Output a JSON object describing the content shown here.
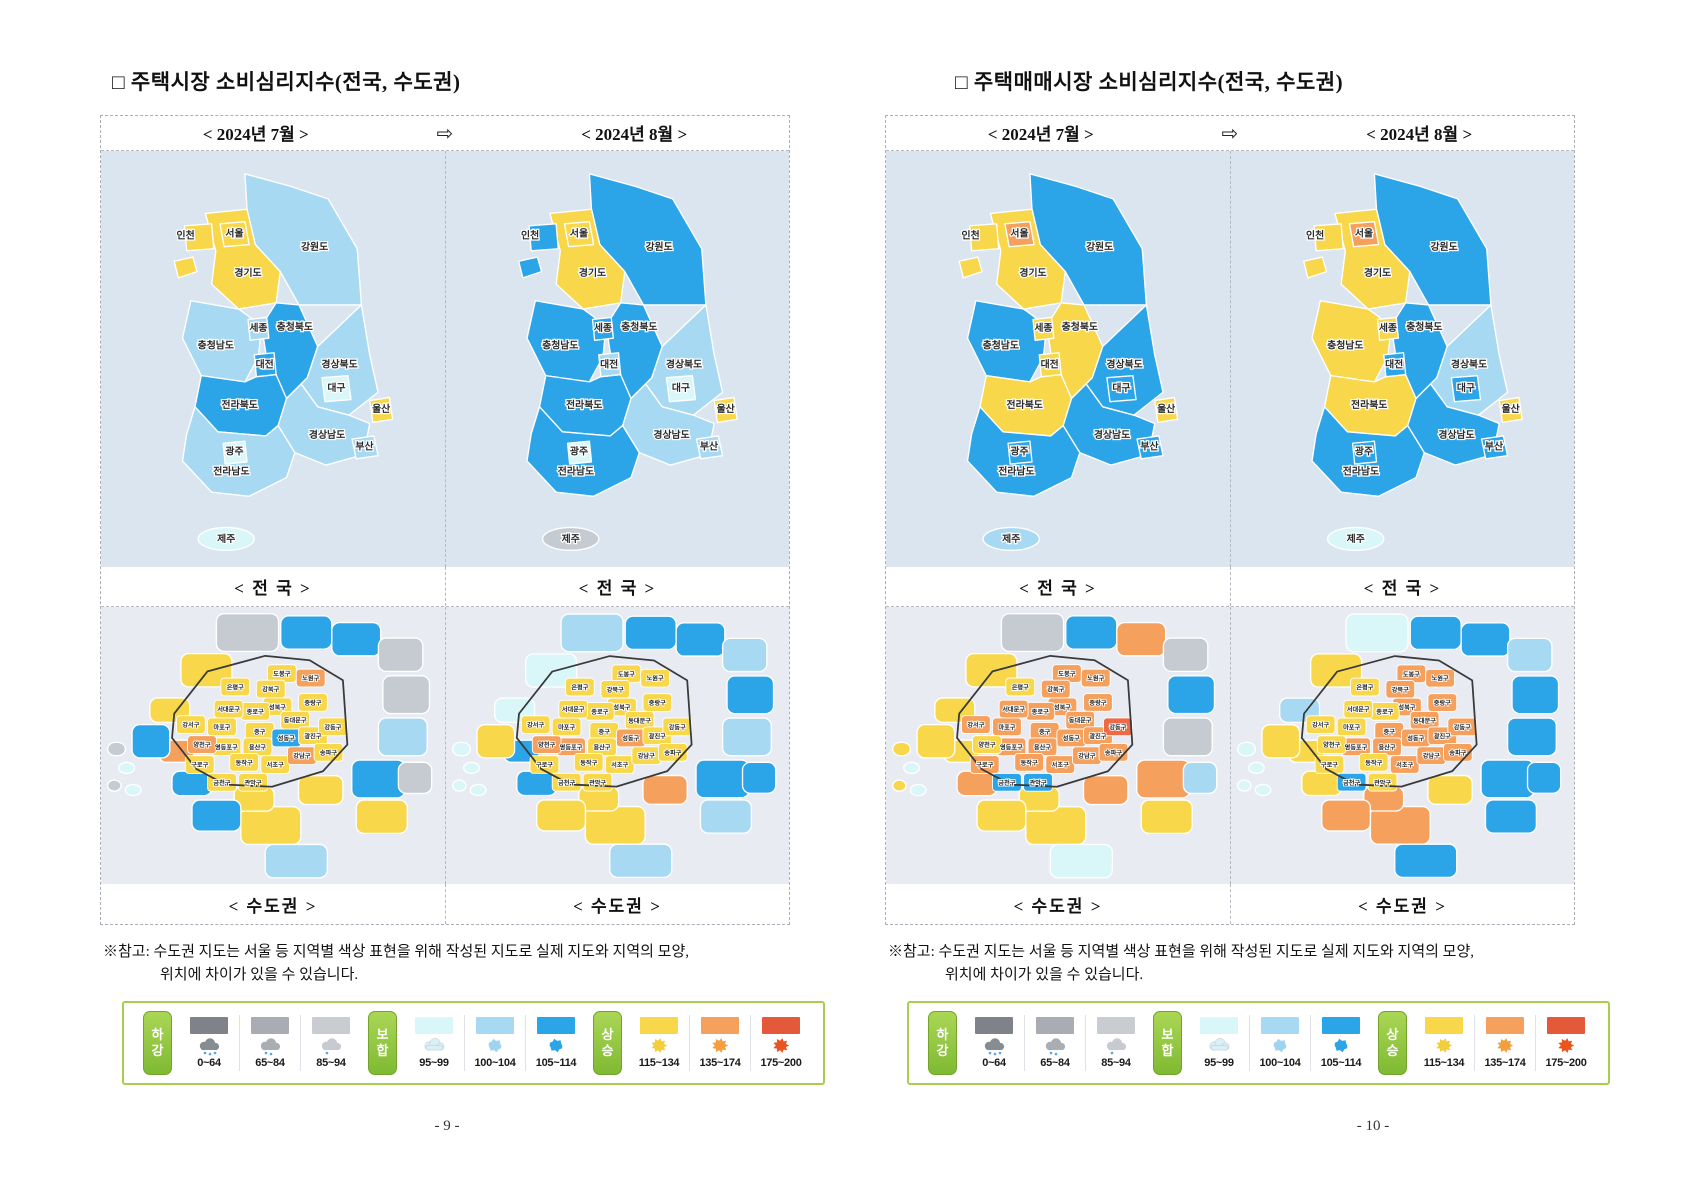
{
  "common": {
    "months": {
      "july": "< 2024년 7월 >",
      "august": "< 2024년 8월 >",
      "arrow": "⇨"
    },
    "section_labels": {
      "national": "< 전  국 >",
      "metro": "< 수도권 >"
    },
    "note": {
      "prefix": "※참고:",
      "line1": "수도권 지도는 서울 등 지역별 색상 표현을 위해 작성된 지도로 실제 지도와 지역의 모양,",
      "line2": "위치에 차이가 있을 수 있습니다."
    }
  },
  "pages": [
    {
      "title": "□ 주택시장 소비심리지수(전국, 수도권)",
      "page_number": "- 9 -",
      "maps": {
        "national_july": {
          "incheon": "y",
          "seoul": "y",
          "gyeonggi": "y",
          "gangwon": "lb",
          "chungbuk": "b",
          "sejong": "lb",
          "chungnam": "lb",
          "daejeon": "b",
          "gyeongbuk": "lb",
          "daegu": "c",
          "ulsan": "y",
          "gyeongnam": "lb",
          "busan": "lb",
          "jeonbuk": "b",
          "gwangju": "c",
          "jeonnam": "lb",
          "jeju": "c"
        },
        "national_august": {
          "incheon": "b",
          "seoul": "y",
          "gyeonggi": "y",
          "gangwon": "b",
          "chungbuk": "b",
          "sejong": "b",
          "chungnam": "b",
          "daejeon": "lb",
          "gyeongbuk": "lb",
          "daegu": "c",
          "ulsan": "y",
          "gyeongnam": "lb",
          "busan": "lb",
          "jeonbuk": "b",
          "gwangju": "c",
          "jeonnam": "b",
          "jeju": "g"
        },
        "metro_july": {
          "dobong": "y",
          "nowon": "o",
          "gangbuk": "y",
          "eunpyeong": "y",
          "seongbuk": "y",
          "jungnang": "y",
          "jongno": "y",
          "dongdaemun": "y",
          "seodaemun": "y",
          "mapo": "y",
          "jung": "y",
          "seongdong": "b",
          "gwangjin": "y",
          "gangdong": "y",
          "yongsan": "y",
          "yeongdeungpo": "y",
          "dongjak": "y",
          "seocho": "y",
          "gangnam": "o",
          "songpa": "y",
          "yangcheon": "o",
          "guro": "y",
          "geumcheon": "y",
          "gwanak": "y",
          "gangseo": "y",
          "g1": "g",
          "g2": "b",
          "g3": "b",
          "g4": "g",
          "g5": "g",
          "g6": "lb",
          "g7": "b",
          "g8": "y",
          "g9": "g",
          "g10": "y",
          "g11": "y",
          "g12": "y",
          "g13": "b",
          "g14": "b",
          "g15": "o",
          "g16": "b",
          "g17": "y",
          "g18": "y",
          "g19": "lb",
          "i1": "g",
          "i2": "c",
          "i3": "g",
          "i4": "c"
        },
        "metro_august": {
          "dobong": "y",
          "nowon": "y",
          "gangbuk": "y",
          "eunpyeong": "y",
          "seongbuk": "y",
          "jungnang": "y",
          "jongno": "y",
          "dongdaemun": "y",
          "seodaemun": "y",
          "mapo": "y",
          "jung": "y",
          "seongdong": "o",
          "gwangjin": "y",
          "gangdong": "y",
          "yongsan": "y",
          "yeongdeungpo": "o",
          "dongjak": "y",
          "seocho": "y",
          "gangnam": "y",
          "songpa": "y",
          "yangcheon": "o",
          "guro": "y",
          "geumcheon": "y",
          "gwanak": "y",
          "gangseo": "y",
          "g1": "lb",
          "g2": "b",
          "g3": "b",
          "g4": "lb",
          "g5": "b",
          "g6": "lb",
          "g7": "b",
          "g8": "lb",
          "g9": "b",
          "g10": "y",
          "g11": "o",
          "g12": "y",
          "g13": "y",
          "g14": "b",
          "g15": "b",
          "g16": "y",
          "g17": "c",
          "g18": "c",
          "g19": "lb",
          "i1": "c",
          "i2": "c",
          "i3": "c",
          "i4": "c"
        }
      }
    },
    {
      "title": "□ 주택매매시장 소비심리지수(전국, 수도권)",
      "page_number": "- 10 -",
      "maps": {
        "national_july": {
          "incheon": "y",
          "seoul": "o",
          "gyeonggi": "y",
          "gangwon": "b",
          "chungbuk": "y",
          "sejong": "y",
          "chungnam": "b",
          "daejeon": "y",
          "gyeongbuk": "b",
          "daegu": "b",
          "ulsan": "y",
          "gyeongnam": "b",
          "busan": "b",
          "jeonbuk": "y",
          "gwangju": "b",
          "jeonnam": "b",
          "jeju": "lb"
        },
        "national_august": {
          "incheon": "y",
          "seoul": "o",
          "gyeonggi": "y",
          "gangwon": "b",
          "chungbuk": "b",
          "sejong": "y",
          "chungnam": "y",
          "daejeon": "b",
          "gyeongbuk": "lb",
          "daegu": "b",
          "ulsan": "y",
          "gyeongnam": "b",
          "busan": "b",
          "jeonbuk": "y",
          "gwangju": "b",
          "jeonnam": "b",
          "jeju": "c"
        },
        "metro_july": {
          "dobong": "o",
          "nowon": "o",
          "gangbuk": "o",
          "eunpyeong": "y",
          "seongbuk": "o",
          "jungnang": "o",
          "jongno": "o",
          "dongdaemun": "o",
          "seodaemun": "o",
          "mapo": "o",
          "jung": "o",
          "seongdong": "o",
          "gwangjin": "o",
          "gangdong": "r",
          "yongsan": "o",
          "yeongdeungpo": "o",
          "dongjak": "o",
          "seocho": "o",
          "gangnam": "o",
          "songpa": "o",
          "yangcheon": "y",
          "guro": "o",
          "geumcheon": "b",
          "gwanak": "b",
          "gangseo": "o",
          "g1": "g",
          "g2": "b",
          "g3": "o",
          "g4": "g",
          "g5": "b",
          "g6": "g",
          "g7": "o",
          "g8": "y",
          "g9": "lb",
          "g10": "y",
          "g11": "o",
          "g12": "y",
          "g13": "y",
          "g14": "o",
          "g15": "y",
          "g16": "y",
          "g17": "y",
          "g18": "y",
          "g19": "c",
          "i1": "y",
          "i2": "c",
          "i3": "y",
          "i4": "c"
        },
        "metro_august": {
          "dobong": "o",
          "nowon": "o",
          "gangbuk": "o",
          "eunpyeong": "y",
          "seongbuk": "o",
          "jungnang": "o",
          "jongno": "y",
          "dongdaemun": "o",
          "seodaemun": "y",
          "mapo": "y",
          "jung": "o",
          "seongdong": "o",
          "gwangjin": "o",
          "gangdong": "o",
          "yongsan": "o",
          "yeongdeungpo": "o",
          "dongjak": "y",
          "seocho": "o",
          "gangnam": "o",
          "songpa": "o",
          "yangcheon": "y",
          "guro": "y",
          "geumcheon": "b",
          "gwanak": "y",
          "gangseo": "y",
          "g1": "c",
          "g2": "b",
          "g3": "b",
          "g4": "lb",
          "g5": "b",
          "g6": "b",
          "g7": "b",
          "g8": "b",
          "g9": "b",
          "g10": "o",
          "g11": "y",
          "g12": "o",
          "g13": "o",
          "g14": "y",
          "g15": "y",
          "g16": "y",
          "g17": "lb",
          "g18": "y",
          "g19": "b",
          "i1": "c",
          "i2": "c",
          "i3": "c",
          "i4": "c"
        }
      }
    }
  ],
  "region_labels": {
    "incheon": "인천",
    "seoul": "서울",
    "gyeonggi": "경기도",
    "gangwon": "강원도",
    "chungbuk": "충청북도",
    "sejong": "세종",
    "chungnam": "충청남도",
    "daejeon": "대전",
    "gyeongbuk": "경상북도",
    "daegu": "대구",
    "ulsan": "울산",
    "gyeongnam": "경상남도",
    "busan": "부산",
    "jeonbuk": "전라북도",
    "gwangju": "광주",
    "jeonnam": "전라남도",
    "jeju": "제주"
  },
  "seoul_district_labels": {
    "dobong": "도봉구",
    "nowon": "노원구",
    "gangbuk": "강북구",
    "eunpyeong": "은평구",
    "seongbuk": "성북구",
    "jungnang": "중랑구",
    "jongno": "종로구",
    "dongdaemun": "동대문구",
    "seodaemun": "서대문구",
    "mapo": "마포구",
    "jung": "중구",
    "seongdong": "성동구",
    "gwangjin": "광진구",
    "gangdong": "강동구",
    "yongsan": "용산구",
    "yeongdeungpo": "영등포구",
    "dongjak": "동작구",
    "seocho": "서초구",
    "gangnam": "강남구",
    "songpa": "송파구",
    "yangcheon": "양천구",
    "guro": "구로구",
    "geumcheon": "금천구",
    "gwanak": "관악구",
    "gangseo": "강서구"
  },
  "legend": {
    "groups": [
      {
        "badge": "하강",
        "items": [
          {
            "range": "0~64",
            "swatch": "#7f8389",
            "icon": "rain",
            "icon_color": "#878c93",
            "drops": 3
          },
          {
            "range": "65~84",
            "swatch": "#a9adb3",
            "icon": "rain",
            "icon_color": "#a9aeb4",
            "drops": 2
          },
          {
            "range": "85~94",
            "swatch": "#c9cdd2",
            "icon": "rain",
            "icon_color": "#c7cbd1",
            "drops": 1
          }
        ]
      },
      {
        "badge": "보합",
        "items": [
          {
            "range": "95~99",
            "swatch": "#d9f6f9",
            "icon": "cloud",
            "icon_color": "#d9f1f6",
            "drops": 0
          },
          {
            "range": "100~104",
            "swatch": "#a8d9f2",
            "icon": "blob",
            "icon_color": "#9fd4f0",
            "drops": 0
          },
          {
            "range": "105~114",
            "swatch": "#2ba4e8",
            "icon": "blob",
            "icon_color": "#2ba4e8",
            "drops": 0
          }
        ]
      },
      {
        "badge": "상승",
        "items": [
          {
            "range": "115~134",
            "swatch": "#f8d74b",
            "icon": "sun",
            "icon_color": "#f2ce3c",
            "drops": 0
          },
          {
            "range": "135~174",
            "swatch": "#f5a05c",
            "icon": "sun",
            "icon_color": "#f49f3d",
            "drops": 0
          },
          {
            "range": "175~200",
            "swatch": "#e4593a",
            "icon": "sun",
            "icon_color": "#e8551e",
            "drops": 0
          }
        ]
      }
    ]
  },
  "palette": {
    "y": "#f8d74b",
    "o": "#f5a05c",
    "r": "#ee6a45",
    "b": "#2ba4e8",
    "lb": "#a8d9f2",
    "c": "#d9f6f9",
    "g": "#c6cbd1",
    "nation_bg": "#dbe5f0",
    "metro_bg": "#e8ecf2"
  }
}
